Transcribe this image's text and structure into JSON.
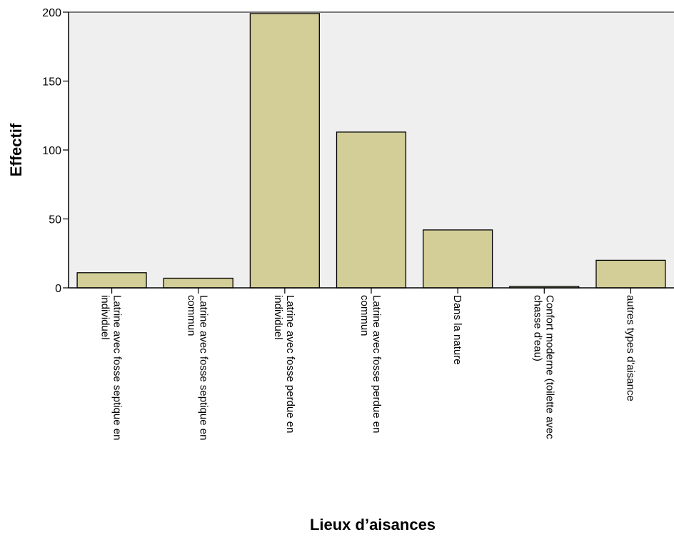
{
  "chart_data": {
    "type": "bar",
    "title": "",
    "xlabel": "Lieux d’aisances",
    "ylabel": "Effectif",
    "ylim": [
      0,
      200
    ],
    "yticks": [
      0,
      50,
      100,
      150,
      200
    ],
    "grid": false,
    "categories": [
      [
        "Latrine avec fosse septique en",
        "individuel"
      ],
      [
        "Latrine avec fosse septique en",
        "commun"
      ],
      [
        "Latrine avec fosse perdue en",
        "individuel"
      ],
      [
        "Latrine avec fosse perdue en",
        "commun"
      ],
      [
        "Dans la nature"
      ],
      [
        "Confort moderne (toilette avec",
        "chasse d'eau)"
      ],
      [
        "autres types d'aisance"
      ]
    ],
    "values": [
      11,
      7,
      199,
      113,
      42,
      1,
      20
    ],
    "colors": {
      "plot_background": "#efefef",
      "bar_fill": "#d3ce98",
      "bar_stroke": "#000000"
    }
  }
}
